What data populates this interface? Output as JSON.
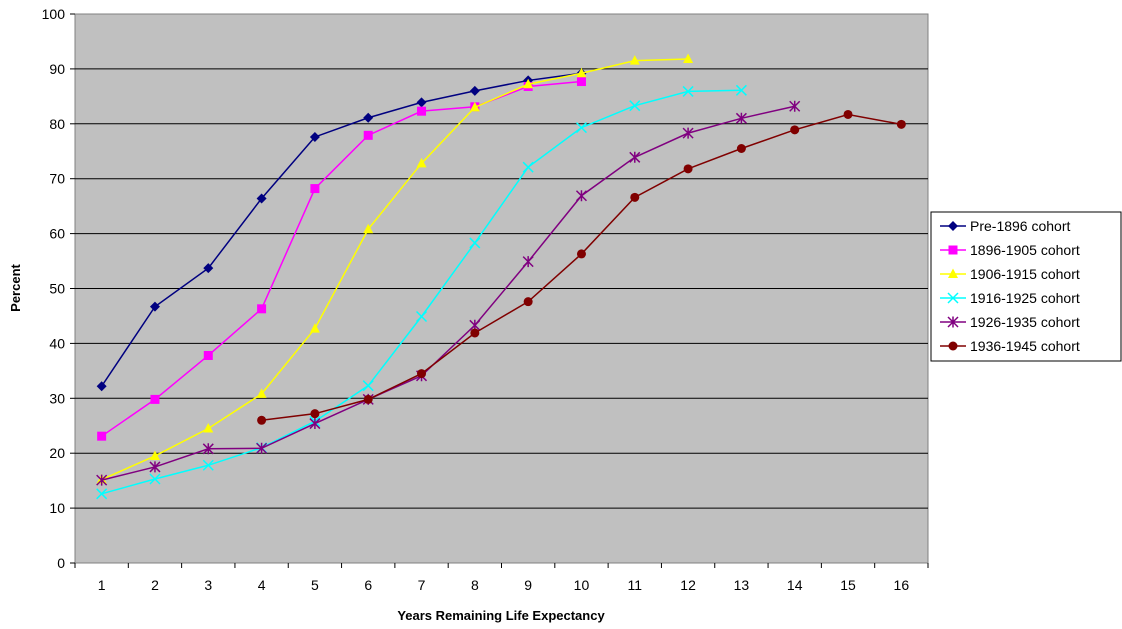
{
  "chart_data": {
    "type": "line",
    "xlabel": "Years Remaining Life Expectancy",
    "ylabel": "Percent",
    "x": [
      1,
      2,
      3,
      4,
      5,
      6,
      7,
      8,
      9,
      10,
      11,
      12,
      13,
      14,
      15,
      16
    ],
    "ylim": [
      0,
      100
    ],
    "yticks": [
      0,
      10,
      20,
      30,
      40,
      50,
      60,
      70,
      80,
      90,
      100
    ],
    "grid": true,
    "legend_position": "right",
    "plot_background": "#c0c0c0",
    "series": [
      {
        "name": "Pre-1896 cohort",
        "color": "#000080",
        "marker": "diamond",
        "x": [
          1,
          2,
          3,
          4,
          5,
          6,
          7,
          8,
          9,
          10
        ],
        "values": [
          32.2,
          46.7,
          53.7,
          66.4,
          77.6,
          81.1,
          83.9,
          86.0,
          87.9,
          89.2
        ]
      },
      {
        "name": "1896-1905 cohort",
        "color": "#ff00ff",
        "marker": "square",
        "x": [
          1,
          2,
          3,
          4,
          5,
          6,
          7,
          8,
          9,
          10
        ],
        "values": [
          23.1,
          29.8,
          37.8,
          46.3,
          68.2,
          77.9,
          82.3,
          83.1,
          86.8,
          87.7
        ]
      },
      {
        "name": "1906-1915 cohort",
        "color": "#ffff00",
        "marker": "triangle",
        "x": [
          1,
          2,
          3,
          4,
          5,
          6,
          7,
          8,
          9,
          10,
          11,
          12
        ],
        "values": [
          15.2,
          19.5,
          24.5,
          30.8,
          42.7,
          60.8,
          72.8,
          83.0,
          87.2,
          89.2,
          91.5,
          91.8
        ]
      },
      {
        "name": "1916-1925 cohort",
        "color": "#00ffff",
        "marker": "x",
        "x": [
          1,
          2,
          3,
          4,
          5,
          6,
          7,
          8,
          9,
          10,
          11,
          12,
          13
        ],
        "values": [
          12.6,
          15.3,
          17.8,
          21.0,
          25.8,
          32.3,
          44.9,
          58.3,
          72.1,
          79.3,
          83.3,
          85.9,
          86.1
        ]
      },
      {
        "name": "1926-1935 cohort",
        "color": "#800080",
        "marker": "star",
        "x": [
          1,
          2,
          3,
          4,
          5,
          6,
          7,
          8,
          9,
          10,
          11,
          12,
          13,
          14
        ],
        "values": [
          15.1,
          17.5,
          20.8,
          20.9,
          25.4,
          29.8,
          34.1,
          43.3,
          54.9,
          66.9,
          73.9,
          78.3,
          81.0,
          83.2
        ]
      },
      {
        "name": "1936-1945 cohort",
        "color": "#800000",
        "marker": "circle",
        "x": [
          4,
          5,
          6,
          7,
          8,
          9,
          10,
          11,
          12,
          13,
          14,
          15,
          16
        ],
        "values": [
          26.0,
          27.2,
          29.8,
          34.5,
          41.9,
          47.6,
          56.3,
          66.6,
          71.8,
          75.5,
          78.9,
          81.7,
          79.9
        ]
      }
    ]
  }
}
